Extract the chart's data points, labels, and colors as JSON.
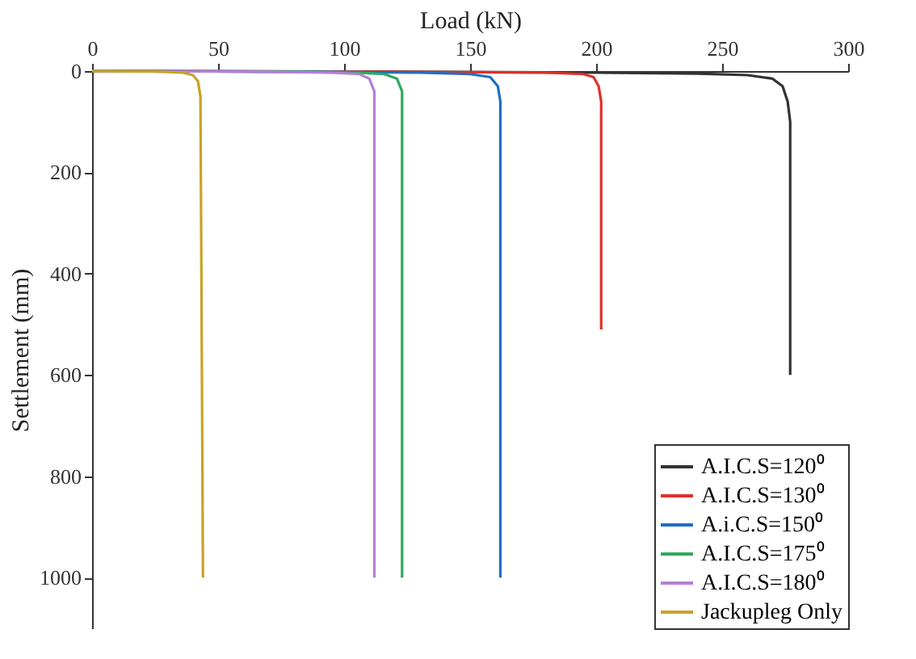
{
  "chart_data": {
    "type": "line",
    "xlabel": "Load (kN)",
    "ylabel": "Settlement (mm)",
    "xlim": [
      0,
      300
    ],
    "xticks": [
      0,
      50,
      100,
      150,
      200,
      250,
      300
    ],
    "ylim": [
      1100,
      0
    ],
    "yticks": [
      0,
      200,
      400,
      600,
      800,
      1000
    ],
    "legend": "bottom right",
    "grid": false,
    "marker": "none",
    "line_style": "solid",
    "series": [
      {
        "name": "A.I.C.S=120⁰",
        "color": "#333333",
        "x": [
          0,
          100,
          200,
          240,
          260,
          270,
          274,
          276,
          277,
          277
        ],
        "values": [
          0,
          1,
          3,
          5,
          8,
          15,
          30,
          60,
          100,
          600
        ]
      },
      {
        "name": "A.I.C.S=130⁰",
        "color": "#e0302a",
        "x": [
          0,
          100,
          180,
          195,
          199,
          201,
          202,
          202
        ],
        "values": [
          0,
          1,
          3,
          6,
          12,
          30,
          60,
          510
        ]
      },
      {
        "name": "A.i.C.S=150⁰",
        "color": "#1f6fc5",
        "x": [
          0,
          80,
          130,
          150,
          158,
          161,
          162,
          162
        ],
        "values": [
          0,
          1,
          3,
          6,
          12,
          30,
          60,
          1000
        ]
      },
      {
        "name": "A.I.C.S=175⁰",
        "color": "#2eaa5a",
        "x": [
          0,
          70,
          105,
          116,
          121,
          123,
          123
        ],
        "values": [
          0,
          1,
          3,
          6,
          15,
          40,
          1000
        ]
      },
      {
        "name": "A.I.C.S=180⁰",
        "color": "#b47fd6",
        "x": [
          0,
          60,
          95,
          106,
          110,
          112,
          112
        ],
        "values": [
          0,
          1,
          3,
          6,
          15,
          40,
          1000
        ]
      },
      {
        "name": "Jackupleg Only",
        "color": "#c9a227",
        "x": [
          0,
          25,
          36,
          40,
          42,
          43,
          44
        ],
        "values": [
          0,
          1,
          3,
          8,
          20,
          50,
          1000
        ]
      }
    ]
  }
}
